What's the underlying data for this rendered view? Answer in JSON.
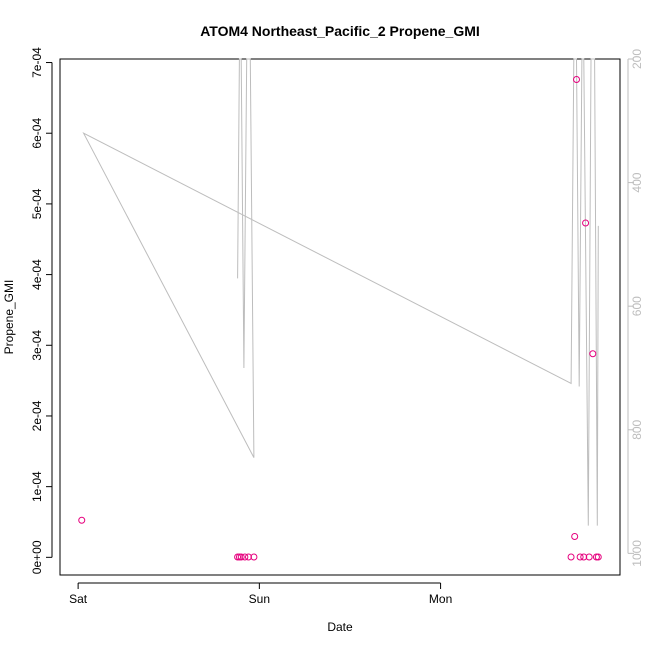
{
  "chart_data": {
    "type": "scatter",
    "title": "ATOM4 Northeast_Pacific_2 Propene_GMI",
    "xlabel": "Date",
    "ylabel": "Propene_GMI",
    "x_tick_labels": [
      "Sat",
      "Sun",
      "Mon"
    ],
    "x_tick_days": [
      0,
      1,
      2
    ],
    "xlim_days": [
      -0.1,
      2.99
    ],
    "ylim": [
      -2.5e-05,
      0.000705
    ],
    "y_ticks": [
      0,
      0.0001,
      0.0002,
      0.0003,
      0.0004,
      0.0005,
      0.0006,
      0.0007
    ],
    "y_tick_labels": [
      "0e+00",
      "1e-04",
      "2e-04",
      "3e-04",
      "4e-04",
      "5e-04",
      "6e-04",
      "7e-04"
    ],
    "y2_axis": {
      "label": "",
      "reversed": true,
      "lim": [
        1035,
        200
      ],
      "ticks": [
        200,
        400,
        600,
        800,
        1000
      ],
      "tick_labels": [
        "200",
        "400",
        "600",
        "800",
        "1000"
      ],
      "color": "#bdbdbd"
    },
    "series": [
      {
        "type": "points",
        "marker": "open-circle",
        "color": "#e6007e",
        "points": [
          {
            "day": 0.02,
            "y": 5.25e-05
          },
          {
            "day": 0.88,
            "y": 5e-07
          },
          {
            "day": 0.89,
            "y": 5e-07
          },
          {
            "day": 0.9,
            "y": 5e-07
          },
          {
            "day": 0.92,
            "y": 5e-07
          },
          {
            "day": 0.94,
            "y": 5e-07
          },
          {
            "day": 0.97,
            "y": 5e-07
          },
          {
            "day": 2.72,
            "y": 5e-07
          },
          {
            "day": 2.74,
            "y": 2.95e-05
          },
          {
            "day": 2.75,
            "y": 0.000676
          },
          {
            "day": 2.77,
            "y": 5e-07
          },
          {
            "day": 2.79,
            "y": 5e-07
          },
          {
            "day": 2.8,
            "y": 0.000473
          },
          {
            "day": 2.82,
            "y": 5e-07
          },
          {
            "day": 2.84,
            "y": 0.000288
          },
          {
            "day": 2.86,
            "y": 5e-07
          },
          {
            "day": 2.87,
            "y": 5e-07
          }
        ]
      },
      {
        "type": "line",
        "axis": "y2",
        "color": "#bdbdbd",
        "points": [
          {
            "day": 2.87,
            "y2": 470
          },
          {
            "day": 2.865,
            "y2": 955
          },
          {
            "day": 2.85,
            "y2": 200
          },
          {
            "day": 2.83,
            "y2": 200
          },
          {
            "day": 2.815,
            "y2": 955
          },
          {
            "day": 2.79,
            "y2": 200
          },
          {
            "day": 2.78,
            "y2": 200
          },
          {
            "day": 2.765,
            "y2": 730
          },
          {
            "day": 2.75,
            "y2": 200
          },
          {
            "day": 2.735,
            "y2": 200
          },
          {
            "day": 2.72,
            "y2": 725
          },
          {
            "day": 0.03,
            "y2": 320
          },
          {
            "day": 0.97,
            "y2": 845
          },
          {
            "day": 0.95,
            "y2": 200
          },
          {
            "day": 0.93,
            "y2": 200
          },
          {
            "day": 0.915,
            "y2": 700
          },
          {
            "day": 0.9,
            "y2": 200
          },
          {
            "day": 0.89,
            "y2": 200
          },
          {
            "day": 0.88,
            "y2": 555
          }
        ]
      }
    ],
    "grid": false,
    "legend": "none"
  }
}
